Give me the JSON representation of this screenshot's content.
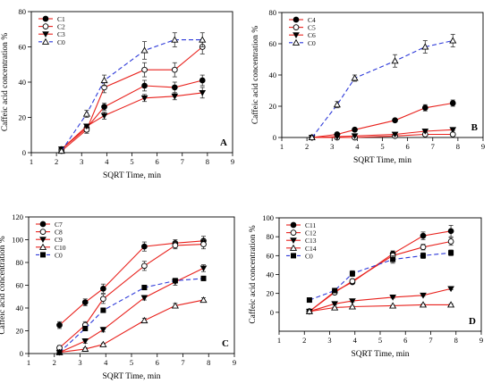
{
  "figure": {
    "colors": {
      "red": "#e8211c",
      "blue": "#2d39d9",
      "black": "#000000"
    }
  },
  "chart_data": [
    {
      "type": "line",
      "panel_label": "A",
      "xlabel": "SQRT Time, min",
      "ylabel": "Caffeic acid concentration %",
      "xlim": [
        1,
        9
      ],
      "ylim": [
        0,
        80
      ],
      "xticks": [
        1,
        2,
        3,
        4,
        5,
        6,
        7,
        8,
        9
      ],
      "yticks": [
        0,
        20,
        40,
        60,
        80
      ],
      "legend_position": "top-left",
      "x": [
        2.2,
        3.2,
        3.9,
        5.5,
        6.7,
        7.8
      ],
      "series": [
        {
          "name": "C1",
          "marker": "filled-circle",
          "line": "solid",
          "color": "#e8211c",
          "values": [
            2,
            14,
            26,
            38,
            37,
            41
          ],
          "errors": [
            1,
            2,
            2,
            3,
            3,
            3
          ]
        },
        {
          "name": "C2",
          "marker": "open-circle",
          "line": "solid",
          "color": "#e8211c",
          "values": [
            1,
            13,
            37,
            47,
            47,
            60
          ],
          "errors": [
            1,
            2,
            3,
            4,
            4,
            4
          ]
        },
        {
          "name": "C3",
          "marker": "filled-triangle-down",
          "line": "solid",
          "color": "#e8211c",
          "values": [
            2,
            15,
            21,
            31,
            32,
            34
          ],
          "errors": [
            1,
            1,
            2,
            2,
            2,
            3
          ]
        },
        {
          "name": "C0",
          "marker": "open-triangle-up",
          "line": "dashed",
          "color": "#2d39d9",
          "values": [
            1,
            22,
            41,
            58,
            64,
            64
          ],
          "errors": [
            1,
            2,
            3,
            5,
            4,
            4
          ]
        }
      ]
    },
    {
      "type": "line",
      "panel_label": "B",
      "xlabel": "SQRT Time, min",
      "ylabel": "Caffeic acid concentration %",
      "xlim": [
        1,
        9
      ],
      "ylim": [
        0,
        80
      ],
      "xticks": [
        1,
        2,
        3,
        4,
        5,
        6,
        7,
        8,
        9
      ],
      "yticks": [
        0,
        20,
        40,
        60,
        80
      ],
      "legend_position": "top-left",
      "x": [
        2.2,
        3.2,
        3.9,
        5.5,
        6.7,
        7.8
      ],
      "series": [
        {
          "name": "C4",
          "marker": "filled-circle",
          "line": "solid",
          "color": "#e8211c",
          "values": [
            0,
            2,
            5,
            11,
            19,
            22
          ],
          "errors": [
            0.5,
            0.5,
            1,
            1,
            2,
            2
          ]
        },
        {
          "name": "C5",
          "marker": "open-circle",
          "line": "solid",
          "color": "#e8211c",
          "values": [
            0,
            0,
            0,
            1,
            2,
            2
          ],
          "errors": [
            0.3,
            0.3,
            0.3,
            0.5,
            0.5,
            0.5
          ]
        },
        {
          "name": "C6",
          "marker": "filled-triangle-down",
          "line": "solid",
          "color": "#e8211c",
          "values": [
            0,
            0.5,
            1,
            2,
            4,
            5
          ],
          "errors": [
            0.3,
            0.3,
            0.3,
            0.5,
            0.5,
            0.5
          ]
        },
        {
          "name": "C0",
          "marker": "open-triangle-up",
          "line": "dashed",
          "color": "#2d39d9",
          "values": [
            0,
            21,
            38,
            49,
            58,
            62
          ],
          "errors": [
            0.5,
            2,
            2,
            4,
            4,
            4
          ]
        }
      ]
    },
    {
      "type": "line",
      "panel_label": "C",
      "xlabel": "SQRT Time, min",
      "ylabel": "Caffeic acid concentration %",
      "xlim": [
        1,
        9
      ],
      "ylim": [
        0,
        120
      ],
      "xticks": [
        1,
        2,
        3,
        4,
        5,
        6,
        7,
        8,
        9
      ],
      "yticks": [
        0,
        20,
        40,
        60,
        80,
        100,
        120
      ],
      "legend_position": "top-left",
      "x": [
        2.2,
        3.2,
        3.9,
        5.5,
        6.7,
        7.8
      ],
      "series": [
        {
          "name": "C7",
          "marker": "filled-circle",
          "line": "solid",
          "color": "#e8211c",
          "values": [
            25,
            45,
            57,
            94,
            97,
            99
          ],
          "errors": [
            3,
            3,
            4,
            4,
            3,
            4
          ]
        },
        {
          "name": "C8",
          "marker": "open-circle",
          "line": "solid",
          "color": "#e8211c",
          "values": [
            5,
            25,
            48,
            77,
            95,
            96
          ],
          "errors": [
            2,
            3,
            4,
            4,
            3,
            4
          ]
        },
        {
          "name": "C9",
          "marker": "filled-triangle-down",
          "line": "solid",
          "color": "#e8211c",
          "values": [
            1,
            11,
            21,
            49,
            63,
            75
          ],
          "errors": [
            1,
            2,
            2,
            2,
            3,
            3
          ]
        },
        {
          "name": "C10",
          "marker": "open-triangle-up",
          "line": "solid",
          "color": "#e8211c",
          "values": [
            1,
            4,
            8,
            29,
            42,
            47
          ],
          "errors": [
            0.5,
            1,
            1,
            2,
            2,
            2
          ]
        },
        {
          "name": "C0",
          "marker": "filled-square",
          "line": "dashed",
          "color": "#2d39d9",
          "values": [
            1,
            22,
            38,
            58,
            64,
            66
          ],
          "errors": [
            1,
            2,
            2,
            2,
            2,
            2
          ]
        }
      ]
    },
    {
      "type": "line",
      "panel_label": "D",
      "xlabel": "SQRT Time, min",
      "ylabel": "Caffeic acid concentration %",
      "xlim": [
        1,
        9
      ],
      "ylim": [
        -20,
        100
      ],
      "xticks": [
        1,
        2,
        3,
        4,
        5,
        6,
        7,
        8,
        9
      ],
      "yticks": [
        0,
        20,
        40,
        60,
        80,
        100
      ],
      "legend_position": "top-left",
      "x": [
        2.2,
        3.2,
        3.9,
        5.5,
        6.7,
        7.8
      ],
      "series": [
        {
          "name": "C11",
          "marker": "filled-circle",
          "line": "solid",
          "color": "#e8211c",
          "values": [
            1,
            22,
            32,
            62,
            81,
            86
          ],
          "errors": [
            1,
            2,
            2,
            3,
            4,
            6
          ]
        },
        {
          "name": "C12",
          "marker": "open-circle",
          "line": "solid",
          "color": "#e8211c",
          "values": [
            1,
            21,
            33,
            60,
            69,
            75
          ],
          "errors": [
            1,
            2,
            2,
            3,
            3,
            4
          ]
        },
        {
          "name": "C13",
          "marker": "filled-triangle-down",
          "line": "solid",
          "color": "#e8211c",
          "values": [
            1,
            9,
            12,
            16,
            18,
            25
          ],
          "errors": [
            0.5,
            1,
            1,
            1,
            1,
            1
          ]
        },
        {
          "name": "C14",
          "marker": "open-triangle-up",
          "line": "solid",
          "color": "#e8211c",
          "values": [
            1,
            5,
            6,
            7,
            8,
            8
          ],
          "errors": [
            0.5,
            0.5,
            0.5,
            0.5,
            1,
            1
          ]
        },
        {
          "name": "C0",
          "marker": "filled-square",
          "line": "dashed",
          "color": "#2d39d9",
          "values": [
            13,
            23,
            41,
            56,
            60,
            63
          ],
          "errors": [
            1,
            2,
            3,
            4,
            3,
            3
          ]
        }
      ]
    }
  ]
}
